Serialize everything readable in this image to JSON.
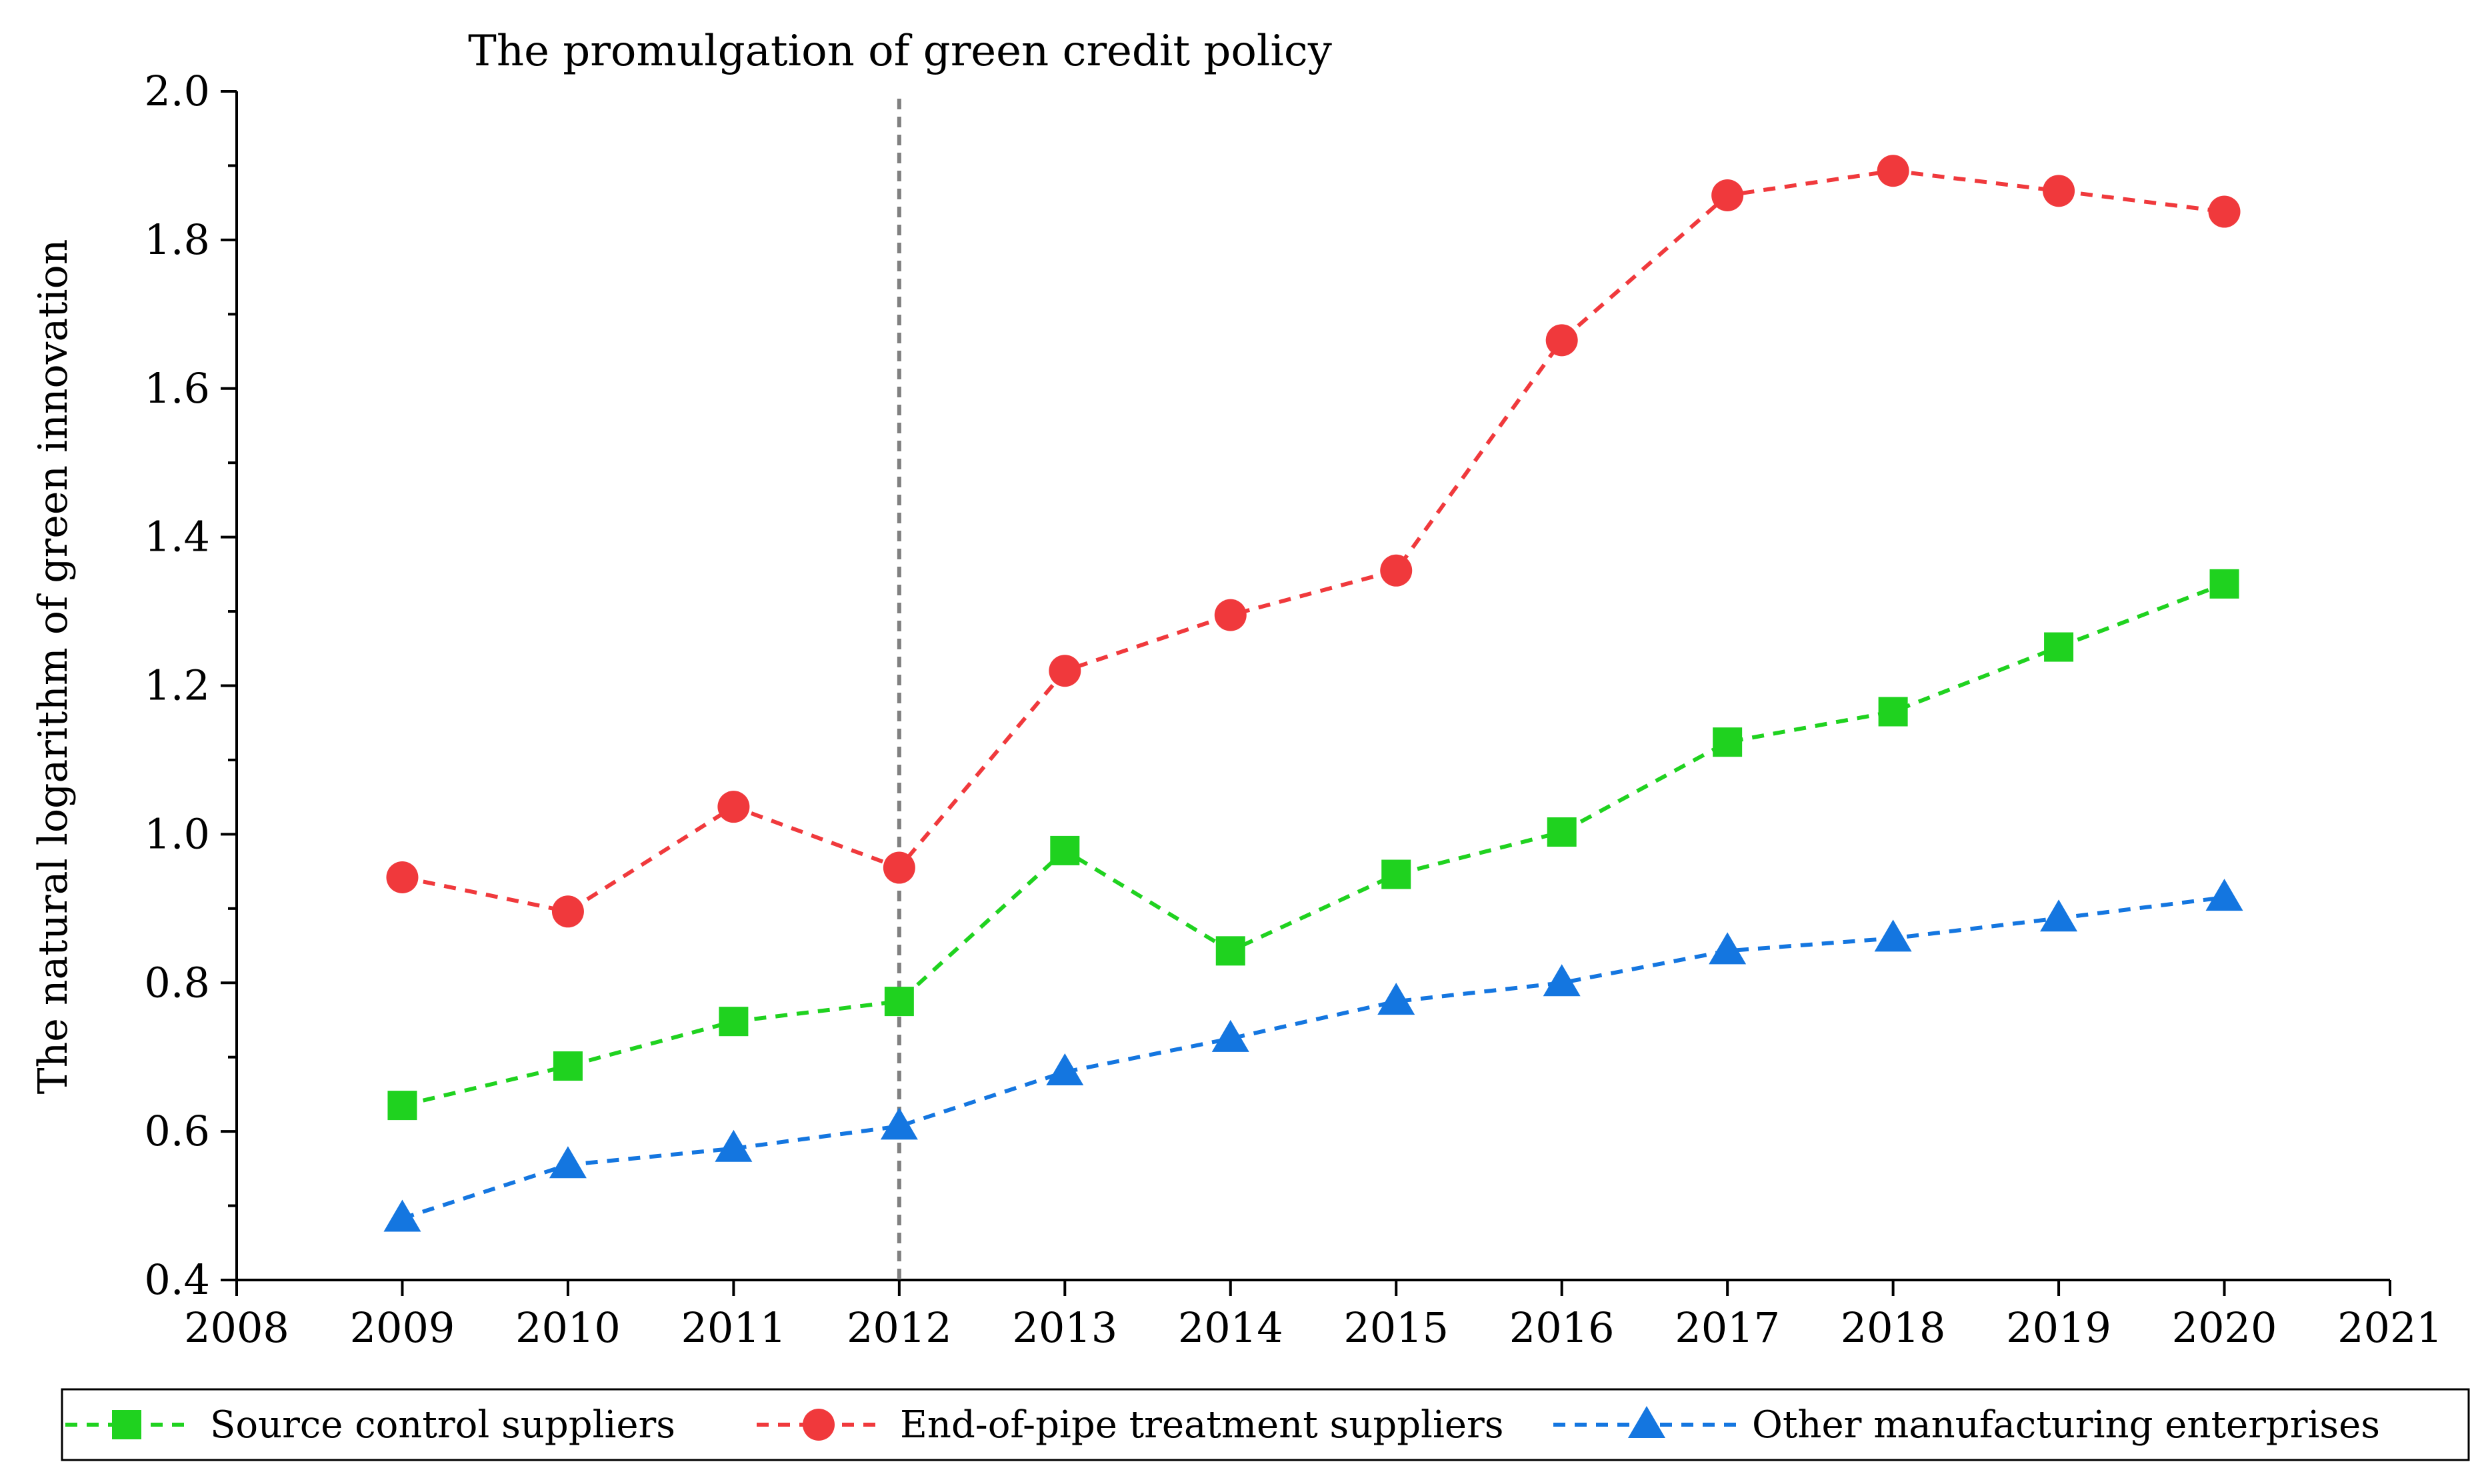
{
  "chart_data": {
    "type": "line",
    "title": "",
    "annotation": {
      "text": "The promulgation of green credit policy",
      "x": 2012
    },
    "xlabel": "",
    "ylabel": "The natural logarithm of green innovation",
    "xlim": [
      2008,
      2021
    ],
    "ylim": [
      0.4,
      2.0
    ],
    "x_ticks": [
      "2008",
      "2009",
      "2010",
      "2011",
      "2012",
      "2013",
      "2014",
      "2015",
      "2016",
      "2017",
      "2018",
      "2019",
      "2020",
      "2021"
    ],
    "y_ticks": [
      "0.4",
      "0.6",
      "0.8",
      "1.0",
      "1.2",
      "1.4",
      "1.6",
      "1.8",
      "2.0"
    ],
    "x": [
      2009,
      2010,
      2011,
      2012,
      2013,
      2014,
      2015,
      2016,
      2017,
      2018,
      2019,
      2020
    ],
    "series": [
      {
        "name": "Source control suppliers",
        "color": "#1fd21f",
        "marker": "square",
        "values": [
          0.635,
          0.688,
          0.748,
          0.775,
          0.978,
          0.843,
          0.946,
          1.003,
          1.124,
          1.165,
          1.252,
          1.337
        ]
      },
      {
        "name": "End-of-pipe treatment suppliers",
        "color": "#f0393c",
        "marker": "circle",
        "values": [
          0.942,
          0.896,
          1.037,
          0.955,
          1.22,
          1.295,
          1.355,
          1.665,
          1.86,
          1.893,
          1.866,
          1.838
        ]
      },
      {
        "name": "Other manufacturing enterprises",
        "color": "#1476e0",
        "marker": "triangle",
        "values": [
          0.483,
          0.555,
          0.577,
          0.607,
          0.68,
          0.725,
          0.775,
          0.8,
          0.843,
          0.86,
          0.887,
          0.915
        ]
      }
    ],
    "legend_position": "bottom"
  }
}
